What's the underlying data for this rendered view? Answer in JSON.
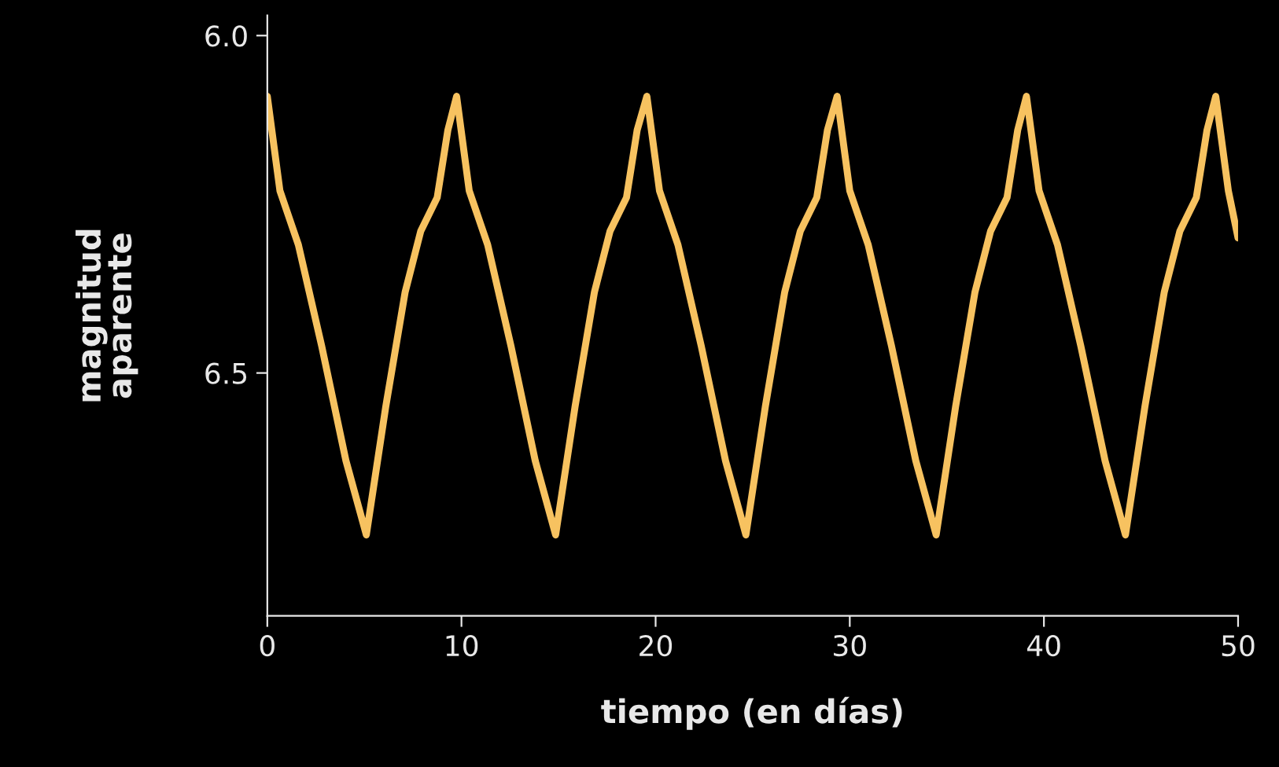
{
  "chart_data": {
    "type": "line",
    "xlabel": "tiempo (en días)",
    "ylabel": "magnitud\naparente",
    "xlim": [
      0,
      50
    ],
    "ylim": [
      6.86,
      5.97
    ],
    "xticks": [
      0,
      10,
      20,
      30,
      40,
      50
    ],
    "yticks": [
      {
        "value": 6.0,
        "label": "6.0"
      },
      {
        "value": 6.5,
        "label": "6.5"
      }
    ],
    "grid": false,
    "marker": "none",
    "line_style": "solid",
    "series": [
      {
        "color": "#f7c260",
        "x": [
          0,
          0.65,
          1.6,
          2.8,
          4.05,
          5.1,
          6.1,
          7.1,
          7.9,
          8.75,
          9.3,
          9.75,
          10.4,
          11.35,
          12.55,
          13.8,
          14.85,
          15.85,
          16.85,
          17.65,
          18.5,
          19.05,
          19.55,
          20.2,
          21.15,
          22.35,
          23.6,
          24.65,
          25.65,
          26.65,
          27.45,
          28.3,
          28.85,
          29.35,
          30.0,
          30.95,
          32.15,
          33.4,
          34.45,
          35.45,
          36.45,
          37.25,
          38.1,
          38.65,
          39.1,
          39.75,
          40.7,
          41.9,
          43.15,
          44.2,
          45.2,
          46.2,
          47.0,
          47.85,
          48.4,
          48.85,
          49.5,
          50
        ],
        "values": [
          6.09,
          6.23,
          6.31,
          6.46,
          6.63,
          6.74,
          6.55,
          6.38,
          6.29,
          6.24,
          6.14,
          6.09,
          6.23,
          6.31,
          6.46,
          6.63,
          6.74,
          6.55,
          6.38,
          6.29,
          6.24,
          6.14,
          6.09,
          6.23,
          6.31,
          6.46,
          6.63,
          6.74,
          6.55,
          6.38,
          6.29,
          6.24,
          6.14,
          6.09,
          6.23,
          6.31,
          6.46,
          6.63,
          6.74,
          6.55,
          6.38,
          6.29,
          6.24,
          6.14,
          6.09,
          6.23,
          6.31,
          6.46,
          6.63,
          6.74,
          6.55,
          6.38,
          6.29,
          6.24,
          6.14,
          6.09,
          6.23,
          6.3
        ]
      }
    ]
  }
}
